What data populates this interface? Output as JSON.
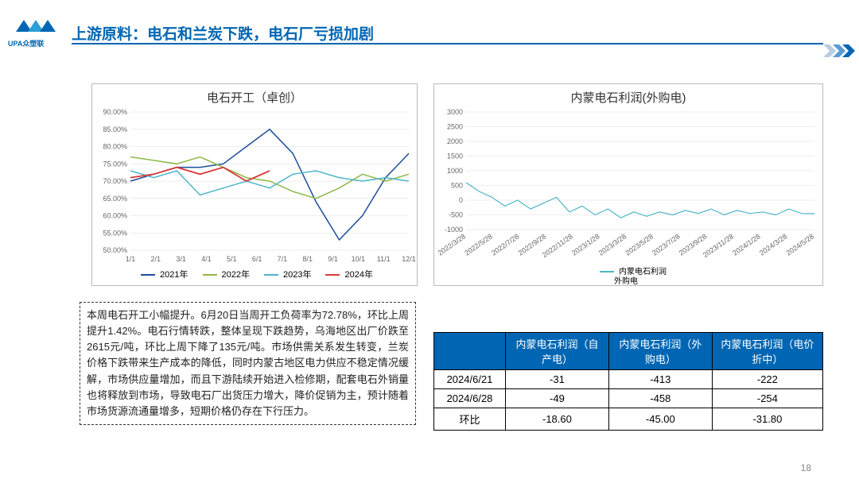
{
  "logo": {
    "text": "UPA众塑联"
  },
  "header": {
    "title": "上游原料：电石和兰炭下跌，电石厂亏损加剧"
  },
  "chart1": {
    "title": "电石开工（卓创）",
    "type": "line",
    "ylim": [
      50,
      90
    ],
    "ytick_step": 5,
    "y_suffix": ".00%",
    "x_labels": [
      "1/1",
      "2/1",
      "3/1",
      "4/1",
      "5/1",
      "6/1",
      "7/1",
      "8/1",
      "9/1",
      "10/1",
      "11/1",
      "12/1"
    ],
    "background_color": "#ffffff",
    "grid_color": "#dddddd",
    "legend_labels": [
      "2021年",
      "2022年",
      "2023年",
      "2024年"
    ],
    "series": [
      {
        "name": "2021年",
        "color": "#1f4e9c",
        "width": 1.5,
        "values": [
          70,
          72,
          74,
          74,
          75,
          80,
          85,
          78,
          64,
          53,
          60,
          71,
          78
        ]
      },
      {
        "name": "2022年",
        "color": "#8fb948",
        "width": 1.5,
        "values": [
          77,
          76,
          75,
          77,
          74,
          71,
          70,
          67,
          65,
          68,
          72,
          70,
          72
        ]
      },
      {
        "name": "2023年",
        "color": "#4fb6c9",
        "width": 1.5,
        "values": [
          73,
          71,
          73,
          66,
          68,
          70,
          68,
          72,
          73,
          71,
          70,
          71,
          70
        ]
      },
      {
        "name": "2024年",
        "color": "#d93a3a",
        "width": 1.8,
        "values": [
          71,
          72,
          74,
          72,
          74,
          70,
          73
        ]
      }
    ]
  },
  "chart2": {
    "title": "内蒙电石利润(外购电)",
    "type": "line",
    "ylim": [
      -1000,
      3000
    ],
    "ytick_step": 500,
    "x_labels": [
      "2022/3/28",
      "2022/5/28",
      "2022/7/28",
      "2022/9/28",
      "2022/11/28",
      "2023/1/28",
      "2023/3/28",
      "2023/5/28",
      "2023/7/28",
      "2023/9/28",
      "2023/11/28",
      "2024/1/28",
      "2024/3/28",
      "2024/5/28"
    ],
    "background_color": "#ffffff",
    "grid_color": "#dddddd",
    "legend_labels": [
      "内蒙电石利润 外购电"
    ],
    "series": [
      {
        "name": "内蒙电石利润 外购电",
        "color": "#4fb6c9",
        "width": 1.2,
        "values": [
          600,
          300,
          100,
          -200,
          0,
          -300,
          -100,
          100,
          -400,
          -200,
          -500,
          -300,
          -600,
          -400,
          -550,
          -400,
          -500,
          -350,
          -450,
          -300,
          -500,
          -350,
          -450,
          -400,
          -500,
          -300,
          -450,
          -458
        ]
      }
    ]
  },
  "text_block": {
    "content": "本周电石开工小幅提升。6月20日当周开工负荷率为72.78%，环比上周提升1.42%。电石行情转跌，整体呈现下跌趋势，乌海地区出厂价跌至2615元/吨，环比上周下降了135元/吨。市场供需关系发生转变，兰炭价格下跌带来生产成本的降低，同时内蒙古地区电力供应不稳定情况缓解，市场供应量增加，而且下游陆续开始进入检修期，配套电石外销量也将释放到市场，导致电石厂出货压力增大，降价促销为主，预计随着市场货源流通量增多，短期价格仍存在下行压力。"
  },
  "table": {
    "header_bg": "#0066b3",
    "header_color": "#ffffff",
    "columns": [
      "",
      "内蒙电石利润（自产电）",
      "内蒙电石利润（外购电）",
      "内蒙电石利润（电价折中）"
    ],
    "rows": [
      [
        "2024/6/21",
        "-31",
        "-413",
        "-222"
      ],
      [
        "2024/6/28",
        "-49",
        "-458",
        "-254"
      ],
      [
        "环比",
        "-18.60",
        "-45.00",
        "-31.80"
      ]
    ]
  },
  "page_number": "18"
}
